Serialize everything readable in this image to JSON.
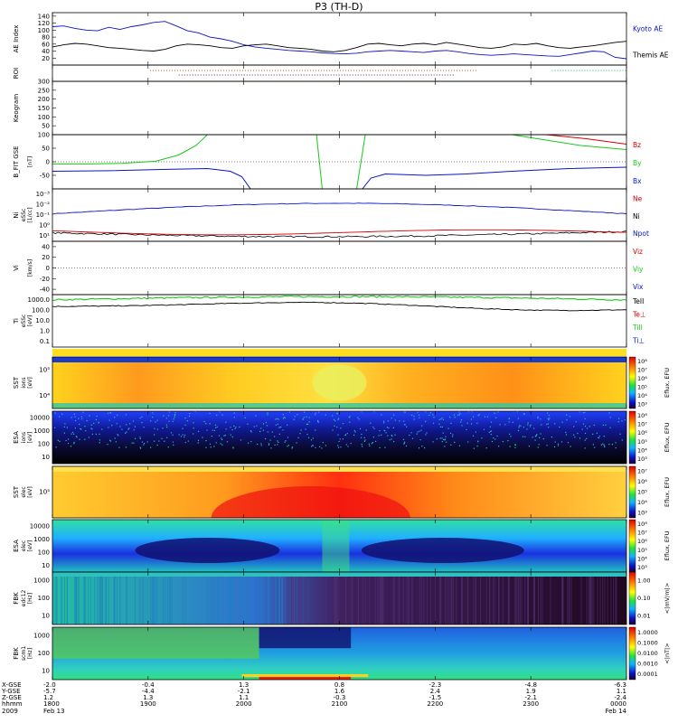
{
  "title": "P3 (TH-D)",
  "colors": {
    "red": "#d40000",
    "green": "#19c819",
    "blue": "#0a14c8",
    "black": "#000000"
  },
  "chart_data": [
    {
      "id": "ae",
      "type": "line",
      "ylabel": "AE Index",
      "yunit": "",
      "ylim": [
        0,
        150
      ],
      "yticks": [
        20,
        40,
        60,
        80,
        100,
        120,
        140
      ],
      "series": [
        {
          "name": "Kyoto AE",
          "color": "blue",
          "values": [
            110,
            112,
            105,
            100,
            98,
            108,
            102,
            110,
            115,
            122,
            125,
            112,
            98,
            92,
            80,
            75,
            68,
            58,
            52,
            48,
            45,
            42,
            40,
            38,
            35,
            33,
            32,
            34,
            38,
            40,
            42,
            40,
            38,
            36,
            40,
            42,
            38,
            33,
            30,
            28,
            30,
            32,
            30,
            28,
            26,
            25,
            30,
            35,
            40,
            38,
            22,
            18
          ]
        },
        {
          "name": "Themis AE",
          "color": "black",
          "values": [
            52,
            58,
            62,
            60,
            55,
            50,
            48,
            45,
            42,
            40,
            45,
            55,
            60,
            58,
            55,
            50,
            48,
            55,
            58,
            60,
            55,
            50,
            48,
            45,
            40,
            38,
            42,
            50,
            60,
            62,
            58,
            55,
            60,
            62,
            58,
            65,
            60,
            55,
            50,
            48,
            52,
            60,
            58,
            62,
            55,
            50,
            48,
            52,
            55,
            60,
            65,
            68
          ]
        }
      ]
    },
    {
      "id": "roi",
      "type": "line",
      "ylabel": "ROI",
      "yunit": ""
    },
    {
      "id": "keogram",
      "type": "line",
      "ylabel": "Keogram",
      "yunit": "",
      "ylim": [
        0,
        300
      ],
      "yticks": [
        50,
        100,
        150,
        200,
        250,
        300
      ]
    },
    {
      "id": "bfield",
      "type": "line",
      "ylabel": "B_FIT GSE",
      "yunit": "[nT]",
      "ylim": [
        -100,
        100
      ],
      "yticks": [
        -50,
        0,
        50,
        100
      ],
      "series": [
        {
          "name": "Bz",
          "color": "red"
        },
        {
          "name": "By",
          "color": "green"
        },
        {
          "name": "Bx",
          "color": "blue"
        }
      ]
    },
    {
      "id": "density",
      "type": "line",
      "ylabel": "Ni",
      "ylabel2": "eSSc",
      "yunit": "[1/cc]",
      "ylim_log": [
        -3,
        1
      ],
      "yticks": [
        "10⁻³",
        "10⁻²",
        "10⁻¹",
        "10⁰",
        "10¹"
      ],
      "series": [
        {
          "name": "Ne",
          "color": "red"
        },
        {
          "name": "Ni",
          "color": "black"
        },
        {
          "name": "Npot",
          "color": "blue"
        }
      ]
    },
    {
      "id": "velocity",
      "type": "line",
      "ylabel": "Vi",
      "yunit": "[km/s]",
      "ylim": [
        -50,
        50
      ],
      "yticks": [
        -40,
        -20,
        0,
        20,
        40
      ],
      "series": [
        {
          "name": "Viz",
          "color": "red"
        },
        {
          "name": "Viy",
          "color": "green"
        },
        {
          "name": "Vix",
          "color": "blue"
        }
      ]
    },
    {
      "id": "temperature",
      "type": "line",
      "ylabel": "Ti",
      "ylabel2": "eSSc",
      "yunit": "[eV]",
      "ylim_log": [
        -1,
        3
      ],
      "yticks": [
        "1000.0",
        "100.0",
        "10.0",
        "1.0",
        "0.1"
      ],
      "series": [
        {
          "name": "TeII",
          "color": "black"
        },
        {
          "name": "Te⊥",
          "color": "red"
        },
        {
          "name": "TiII",
          "color": "green"
        },
        {
          "name": "Ti⊥",
          "color": "blue"
        }
      ]
    },
    {
      "id": "sst_ion",
      "type": "heatmap",
      "ylabel": "SST",
      "ylabel2": "ions",
      "yunit": "[eV]",
      "yticks": [
        "10⁵",
        "10⁴"
      ],
      "cbar_ticks": [
        "10⁸",
        "10⁷",
        "10⁶",
        "10⁵",
        "10⁴",
        "10³"
      ],
      "cbar_label": "Eflux, EFU"
    },
    {
      "id": "esa_ion",
      "type": "heatmap",
      "ylabel": "ESA",
      "ylabel2": "ions",
      "yunit": "[eV]",
      "yticks": [
        "10000",
        "1000",
        "100",
        "10"
      ],
      "cbar_ticks": [
        "10⁸",
        "10⁷",
        "10⁶",
        "10⁵",
        "10⁴",
        "10³"
      ],
      "cbar_label": "Eflux, EFU"
    },
    {
      "id": "sst_elec",
      "type": "heatmap",
      "ylabel": "SST",
      "ylabel2": "elec",
      "yunit": "[eV]",
      "yticks": [
        "10⁵"
      ],
      "cbar_ticks": [
        "10⁷",
        "10⁶",
        "10⁵",
        "10⁴",
        "10³"
      ],
      "cbar_label": "Eflux, EFU"
    },
    {
      "id": "esa_elec",
      "type": "heatmap",
      "ylabel": "ESA",
      "ylabel2": "elec",
      "yunit": "[eV]",
      "yticks": [
        "10000",
        "1000",
        "100",
        "10"
      ],
      "cbar_ticks": [
        "10⁸",
        "10⁷",
        "10⁶",
        "10⁵",
        "10⁴",
        "10³"
      ],
      "cbar_label": "Eflux, EFU"
    },
    {
      "id": "fbk_edc",
      "type": "heatmap",
      "ylabel": "FBK",
      "ylabel2": "edc12",
      "yunit": "[Hz]",
      "yticks": [
        "1000",
        "100",
        "10"
      ],
      "cbar_ticks": [
        "1.00",
        "0.10",
        "0.01"
      ],
      "cbar_label": "<|mV/m|>"
    },
    {
      "id": "fbk_scm",
      "type": "heatmap",
      "ylabel": "FBK",
      "ylabel2": "scm1",
      "yunit": "[Hz]",
      "yticks": [
        "1000",
        "100",
        "10"
      ],
      "cbar_ticks": [
        "1.0000",
        "0.1000",
        "0.0100",
        "0.0010",
        "0.0001"
      ],
      "cbar_label": "<|nT|>"
    }
  ],
  "time_axis": {
    "row_labels": [
      "X-GSE",
      "Y-GSE",
      "Z-GSE",
      "hhmm",
      "2009"
    ],
    "columns": [
      {
        "x": "-2.0",
        "y": "-5.7",
        "z": "1.2",
        "t": "1800",
        "date": "Feb 13"
      },
      {
        "x": "-0.4",
        "y": "-4.4",
        "z": "1.3",
        "t": "1900",
        "date": ""
      },
      {
        "x": "1.3",
        "y": "-2.1",
        "z": "1.1",
        "t": "2000",
        "date": ""
      },
      {
        "x": "0.8",
        "y": "1.6",
        "z": "-0.3",
        "t": "2100",
        "date": ""
      },
      {
        "x": "-2.3",
        "y": "2.4",
        "z": "-1.5",
        "t": "2200",
        "date": ""
      },
      {
        "x": "-4.8",
        "y": "1.9",
        "z": "-2.1",
        "t": "2300",
        "date": ""
      },
      {
        "x": "-6.3",
        "y": "1.1",
        "z": "-2.4",
        "t": "0000",
        "date": "Feb 14"
      }
    ]
  }
}
